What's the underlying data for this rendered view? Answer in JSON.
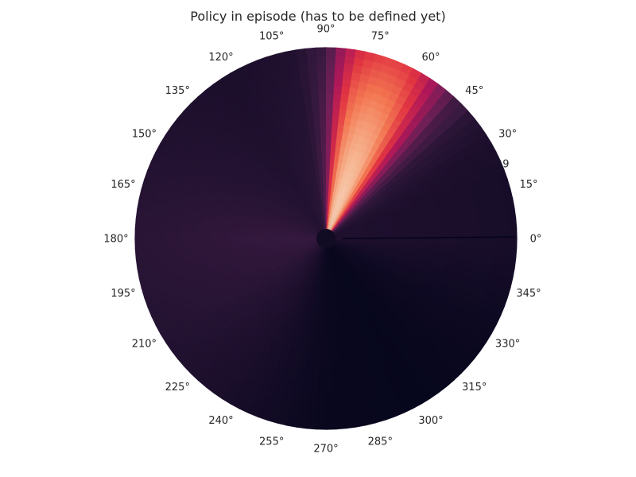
{
  "chart_data": {
    "type": "heatmap",
    "projection": "polar",
    "title": "Policy in episode (has to be defined yet)",
    "theta_ticks": [
      "0°",
      "15°",
      "30°",
      "45°",
      "60°",
      "75°",
      "90°",
      "105°",
      "120°",
      "135°",
      "150°",
      "165°",
      "180°",
      "195°",
      "210°",
      "225°",
      "240°",
      "255°",
      "270°",
      "285°",
      "300°",
      "315°",
      "330°",
      "345°"
    ],
    "radial_tick_labels": [
      "9"
    ],
    "colormap": "rocket",
    "colormap_stops": [
      "#03051a",
      "#35193e",
      "#701f57",
      "#ad1759",
      "#e13342",
      "#f37651",
      "#f6b48f",
      "#faebdd"
    ],
    "grid": false,
    "value_range": [
      0,
      1
    ],
    "angular_profile": {
      "theta_deg": [
        0,
        20,
        30,
        40,
        45,
        50,
        55,
        60,
        65,
        70,
        75,
        80,
        85,
        88,
        90,
        95,
        100,
        120,
        150,
        180,
        210,
        240,
        270,
        300,
        330,
        360
      ],
      "intensity": [
        0.07,
        0.07,
        0.08,
        0.12,
        0.2,
        0.38,
        0.6,
        0.8,
        0.9,
        0.92,
        0.9,
        0.82,
        0.6,
        0.38,
        0.26,
        0.14,
        0.1,
        0.08,
        0.1,
        0.13,
        0.11,
        0.07,
        0.02,
        0.01,
        0.03,
        0.07
      ]
    }
  }
}
